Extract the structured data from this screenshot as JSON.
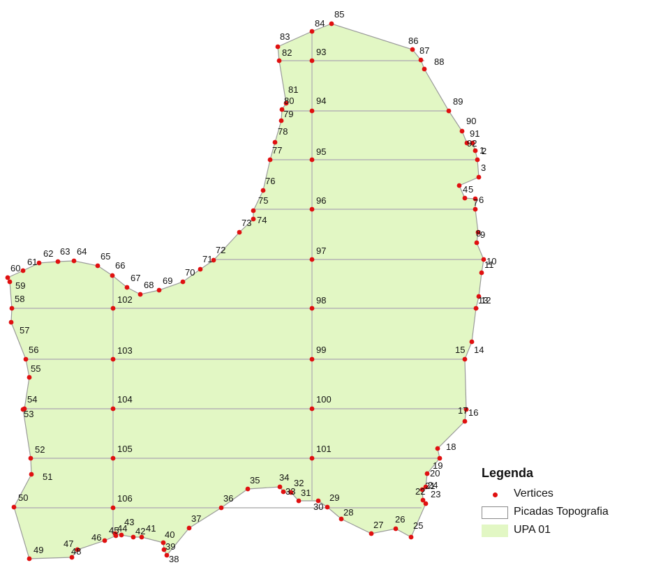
{
  "map": {
    "vertex_labels": [
      "1",
      "2",
      "3",
      "4",
      "5",
      "6",
      "7",
      "8",
      "9",
      "10",
      "11",
      "12",
      "13",
      "14",
      "15",
      "16",
      "17",
      "18",
      "19",
      "20",
      "21",
      "22",
      "23",
      "24",
      "25",
      "26",
      "27",
      "28",
      "29",
      "30",
      "31",
      "32",
      "33",
      "34",
      "35",
      "36",
      "37",
      "38",
      "39",
      "40",
      "41",
      "42",
      "43",
      "44",
      "45",
      "46",
      "47",
      "48",
      "49",
      "50",
      "51",
      "52",
      "53",
      "54",
      "55",
      "56",
      "57",
      "58",
      "59",
      "60",
      "61",
      "62",
      "63",
      "64",
      "65",
      "66",
      "67",
      "68",
      "69",
      "70",
      "71",
      "72",
      "73",
      "74",
      "75",
      "76",
      "77",
      "78",
      "79",
      "80",
      "81",
      "82",
      "83",
      "84",
      "85",
      "86",
      "87",
      "88",
      "89",
      "90",
      "91",
      "92",
      "93",
      "94",
      "95",
      "96",
      "97",
      "98",
      "99",
      "100",
      "101",
      "102",
      "103",
      "104",
      "105",
      "106"
    ]
  },
  "legend": {
    "title": "Legenda",
    "items": [
      {
        "label": "Vertices",
        "symbol": "dot",
        "color": "#e01010"
      },
      {
        "label": "Picadas Topografia",
        "symbol": "outline-box",
        "color": "#8a8a8a"
      },
      {
        "label": "UPA 01",
        "symbol": "filled-box",
        "color": "#e2f7c4"
      }
    ]
  }
}
